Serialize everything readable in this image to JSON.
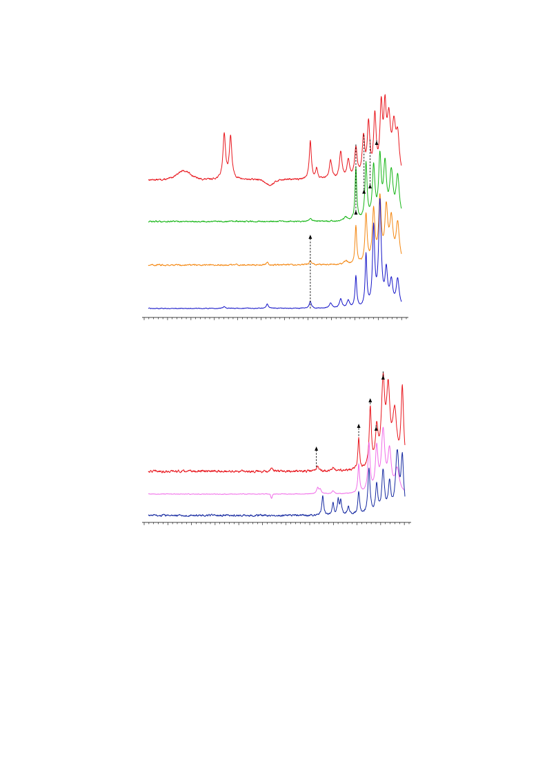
{
  "chart_data": [
    {
      "type": "line",
      "title": "",
      "xlabel": "",
      "ylabel": "",
      "x_range": [
        0,
        1
      ],
      "grid": false,
      "legend": "none",
      "series": [
        {
          "color": "#e8141b",
          "baseline": 0.76,
          "noise": 0.0035,
          "humps": [
            [
              0.14,
              0.04,
              0.05
            ],
            [
              0.48,
              0.025,
              -0.03
            ]
          ],
          "peaks": [
            [
              0.3,
              0.006,
              0.26
            ],
            [
              0.325,
              0.006,
              0.24
            ],
            [
              0.64,
              0.005,
              0.22
            ],
            [
              0.665,
              0.005,
              0.06
            ],
            [
              0.72,
              0.006,
              0.11
            ],
            [
              0.76,
              0.006,
              0.15
            ],
            [
              0.79,
              0.006,
              0.1
            ],
            [
              0.82,
              0.006,
              0.17
            ],
            [
              0.85,
              0.006,
              0.22
            ],
            [
              0.87,
              0.006,
              0.3
            ],
            [
              0.895,
              0.006,
              0.34
            ],
            [
              0.92,
              0.006,
              0.38
            ],
            [
              0.935,
              0.006,
              0.34
            ],
            [
              0.95,
              0.008,
              0.3
            ],
            [
              0.97,
              0.008,
              0.26
            ],
            [
              0.985,
              0.008,
              0.22
            ]
          ]
        },
        {
          "color": "#14b514",
          "baseline": 0.52,
          "noise": 0.003,
          "humps": [],
          "peaks": [
            [
              0.64,
              0.008,
              0.015
            ],
            [
              0.78,
              0.008,
              0.02
            ],
            [
              0.82,
              0.004,
              0.3
            ],
            [
              0.86,
              0.005,
              0.32
            ],
            [
              0.89,
              0.006,
              0.3
            ],
            [
              0.915,
              0.006,
              0.34
            ],
            [
              0.935,
              0.007,
              0.3
            ],
            [
              0.96,
              0.008,
              0.26
            ],
            [
              0.985,
              0.008,
              0.24
            ]
          ]
        },
        {
          "color": "#f4860f",
          "baseline": 0.27,
          "noise": 0.003,
          "humps": [],
          "peaks": [
            [
              0.47,
              0.005,
              0.015
            ],
            [
              0.64,
              0.006,
              0.02
            ],
            [
              0.78,
              0.008,
              0.02
            ],
            [
              0.82,
              0.004,
              0.22
            ],
            [
              0.86,
              0.005,
              0.28
            ],
            [
              0.89,
              0.006,
              0.3
            ],
            [
              0.915,
              0.006,
              0.36
            ],
            [
              0.94,
              0.007,
              0.3
            ],
            [
              0.96,
              0.008,
              0.24
            ],
            [
              0.985,
              0.008,
              0.22
            ]
          ]
        },
        {
          "color": "#1414c8",
          "baseline": 0.02,
          "noise": 0.0015,
          "humps": [],
          "peaks": [
            [
              0.3,
              0.006,
              0.01
            ],
            [
              0.47,
              0.005,
              0.025
            ],
            [
              0.64,
              0.005,
              0.04
            ],
            [
              0.72,
              0.006,
              0.03
            ],
            [
              0.76,
              0.006,
              0.05
            ],
            [
              0.79,
              0.006,
              0.04
            ],
            [
              0.82,
              0.004,
              0.18
            ],
            [
              0.86,
              0.004,
              0.3
            ],
            [
              0.89,
              0.005,
              0.45
            ],
            [
              0.915,
              0.006,
              0.6
            ],
            [
              0.94,
              0.006,
              0.2
            ],
            [
              0.96,
              0.007,
              0.14
            ],
            [
              0.985,
              0.007,
              0.16
            ]
          ]
        }
      ],
      "markers": [
        {
          "x": 0.64,
          "from": "bottom",
          "top": 0.44
        },
        {
          "x": 0.82,
          "from": "peak",
          "top": 0.58
        },
        {
          "x": 0.852,
          "from": "peak",
          "top": 0.7
        },
        {
          "x": 0.876,
          "from": "peak",
          "top": 0.73
        },
        {
          "x": 0.902,
          "from": "peak",
          "top": 0.98
        }
      ]
    },
    {
      "type": "line",
      "title": "",
      "xlabel": "",
      "ylabel": "",
      "x_range": [
        0,
        1
      ],
      "grid": false,
      "legend": "none",
      "series": [
        {
          "color": "#e8141b",
          "baseline": 0.33,
          "noise": 0.006,
          "humps": [],
          "peaks": [
            [
              0.48,
              0.006,
              0.02
            ],
            [
              0.66,
              0.006,
              0.03
            ],
            [
              0.72,
              0.006,
              0.02
            ],
            [
              0.82,
              0.004,
              0.22
            ],
            [
              0.865,
              0.005,
              0.42
            ],
            [
              0.89,
              0.006,
              0.26
            ],
            [
              0.915,
              0.008,
              0.58
            ],
            [
              0.935,
              0.008,
              0.5
            ],
            [
              0.96,
              0.01,
              0.38
            ],
            [
              0.99,
              0.006,
              0.55
            ]
          ]
        },
        {
          "color": "#f06ae8",
          "baseline": 0.17,
          "noise": 0.0015,
          "humps": [
            [
              0.48,
              0.004,
              -0.03
            ]
          ],
          "peaks": [
            [
              0.66,
              0.005,
              0.04
            ],
            [
              0.67,
              0.005,
              0.03
            ],
            [
              0.72,
              0.006,
              0.02
            ],
            [
              0.82,
              0.004,
              0.2
            ],
            [
              0.86,
              0.005,
              0.34
            ],
            [
              0.89,
              0.006,
              0.3
            ],
            [
              0.915,
              0.008,
              0.42
            ],
            [
              0.94,
              0.008,
              0.28
            ],
            [
              0.97,
              0.01,
              0.16
            ]
          ]
        },
        {
          "color": "#1428a0",
          "baseline": 0.02,
          "noise": 0.005,
          "humps": [],
          "peaks": [
            [
              0.68,
              0.004,
              0.14
            ],
            [
              0.72,
              0.004,
              0.08
            ],
            [
              0.74,
              0.004,
              0.1
            ],
            [
              0.75,
              0.004,
              0.1
            ],
            [
              0.78,
              0.004,
              0.06
            ],
            [
              0.82,
              0.004,
              0.16
            ],
            [
              0.86,
              0.005,
              0.32
            ],
            [
              0.89,
              0.005,
              0.2
            ],
            [
              0.915,
              0.006,
              0.3
            ],
            [
              0.94,
              0.006,
              0.2
            ],
            [
              0.97,
              0.008,
              0.42
            ],
            [
              0.99,
              0.006,
              0.38
            ]
          ]
        }
      ],
      "markers": [
        {
          "x": 0.655,
          "from": "peak",
          "top": 0.5
        },
        {
          "x": 0.82,
          "from": "peak",
          "top": 0.66
        },
        {
          "x": 0.865,
          "from": "peak",
          "top": 0.84
        },
        {
          "x": 0.888,
          "from": "peak",
          "top": 0.64
        },
        {
          "x": 0.915,
          "from": "peak",
          "top": 1.0
        }
      ]
    }
  ]
}
